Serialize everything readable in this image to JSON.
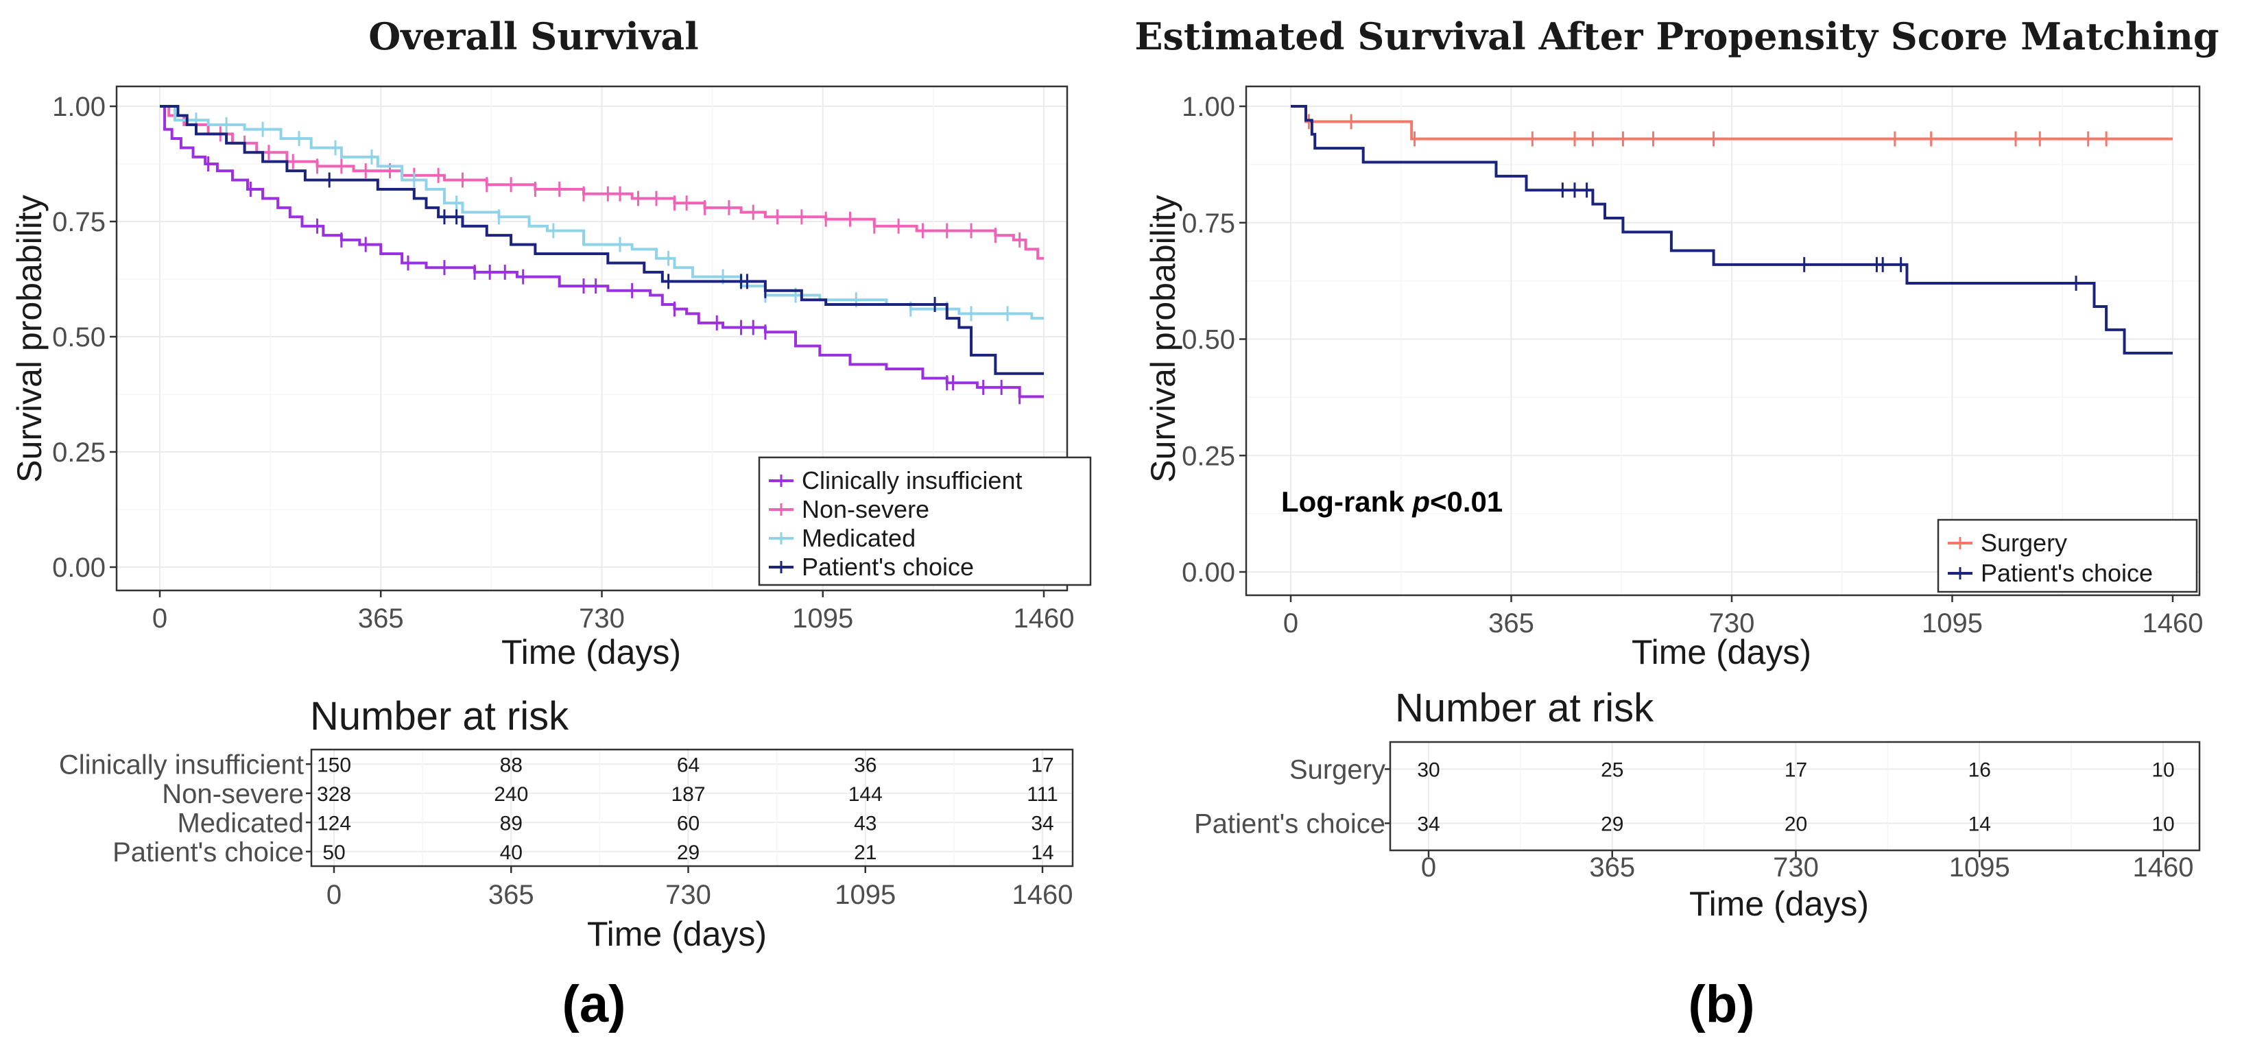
{
  "chart_data": [
    {
      "type": "line",
      "subtype": "kaplan-meier",
      "panel_label": "(a)",
      "title": "Overall Survival",
      "xlabel": "Time (days)",
      "ylabel": "Survival probability",
      "xlim": [
        0,
        1460
      ],
      "ylim": [
        0,
        1
      ],
      "xticks": [
        0,
        365,
        730,
        1095,
        1460
      ],
      "xtick_labels": [
        "0",
        "365",
        "730",
        "1095",
        "1460"
      ],
      "yticks": [
        0,
        0.25,
        0.5,
        0.75,
        1
      ],
      "ytick_labels": [
        "0.00",
        "0.25",
        "0.50",
        "0.75",
        "1.00"
      ],
      "grid": true,
      "legend_position": "bottom-right",
      "series": [
        {
          "name": "Clinically insufficient",
          "color": "#9b30e0",
          "steps": [
            [
              0,
              1.0
            ],
            [
              8,
              0.95
            ],
            [
              20,
              0.93
            ],
            [
              35,
              0.91
            ],
            [
              55,
              0.89
            ],
            [
              75,
              0.875
            ],
            [
              95,
              0.86
            ],
            [
              120,
              0.84
            ],
            [
              145,
              0.82
            ],
            [
              170,
              0.8
            ],
            [
              195,
              0.78
            ],
            [
              215,
              0.76
            ],
            [
              235,
              0.74
            ],
            [
              270,
              0.72
            ],
            [
              300,
              0.71
            ],
            [
              330,
              0.7
            ],
            [
              365,
              0.68
            ],
            [
              400,
              0.66
            ],
            [
              440,
              0.65
            ],
            [
              520,
              0.64
            ],
            [
              590,
              0.63
            ],
            [
              660,
              0.61
            ],
            [
              740,
              0.6
            ],
            [
              810,
              0.59
            ],
            [
              830,
              0.57
            ],
            [
              850,
              0.56
            ],
            [
              870,
              0.55
            ],
            [
              890,
              0.53
            ],
            [
              930,
              0.52
            ],
            [
              1000,
              0.51
            ],
            [
              1050,
              0.48
            ],
            [
              1090,
              0.46
            ],
            [
              1140,
              0.44
            ],
            [
              1200,
              0.43
            ],
            [
              1260,
              0.41
            ],
            [
              1300,
              0.4
            ],
            [
              1350,
              0.39
            ],
            [
              1420,
              0.37
            ],
            [
              1460,
              0.37
            ]
          ],
          "censor_times": [
            80,
            150,
            260,
            300,
            340,
            410,
            470,
            520,
            545,
            570,
            600,
            700,
            720,
            780,
            850,
            920,
            960,
            980,
            1000,
            1300,
            1310,
            1360,
            1390,
            1420
          ]
        },
        {
          "name": "Non-severe",
          "color": "#f062b5",
          "steps": [
            [
              0,
              1.0
            ],
            [
              15,
              0.98
            ],
            [
              40,
              0.96
            ],
            [
              80,
              0.94
            ],
            [
              120,
              0.92
            ],
            [
              160,
              0.9
            ],
            [
              210,
              0.88
            ],
            [
              260,
              0.87
            ],
            [
              320,
              0.86
            ],
            [
              400,
              0.85
            ],
            [
              470,
              0.84
            ],
            [
              540,
              0.83
            ],
            [
              620,
              0.82
            ],
            [
              700,
              0.81
            ],
            [
              780,
              0.8
            ],
            [
              850,
              0.79
            ],
            [
              900,
              0.78
            ],
            [
              960,
              0.77
            ],
            [
              1000,
              0.76
            ],
            [
              1100,
              0.755
            ],
            [
              1180,
              0.74
            ],
            [
              1250,
              0.73
            ],
            [
              1380,
              0.72
            ],
            [
              1410,
              0.71
            ],
            [
              1430,
              0.69
            ],
            [
              1450,
              0.67
            ],
            [
              1460,
              0.67
            ]
          ],
          "censor_times": [
            60,
            100,
            140,
            180,
            220,
            260,
            300,
            340,
            380,
            420,
            460,
            500,
            540,
            580,
            620,
            660,
            700,
            740,
            760,
            790,
            820,
            850,
            870,
            900,
            940,
            980,
            1020,
            1060,
            1100,
            1140,
            1180,
            1220,
            1260,
            1300,
            1340,
            1380,
            1420
          ]
        },
        {
          "name": "Medicated",
          "color": "#8fd3e8",
          "steps": [
            [
              0,
              1.0
            ],
            [
              25,
              0.97
            ],
            [
              80,
              0.96
            ],
            [
              140,
              0.95
            ],
            [
              200,
              0.93
            ],
            [
              250,
              0.91
            ],
            [
              300,
              0.89
            ],
            [
              360,
              0.87
            ],
            [
              400,
              0.84
            ],
            [
              440,
              0.82
            ],
            [
              470,
              0.79
            ],
            [
              500,
              0.77
            ],
            [
              560,
              0.76
            ],
            [
              610,
              0.74
            ],
            [
              640,
              0.73
            ],
            [
              700,
              0.7
            ],
            [
              780,
              0.69
            ],
            [
              820,
              0.67
            ],
            [
              850,
              0.65
            ],
            [
              880,
              0.63
            ],
            [
              960,
              0.61
            ],
            [
              1000,
              0.59
            ],
            [
              1090,
              0.58
            ],
            [
              1200,
              0.57
            ],
            [
              1240,
              0.56
            ],
            [
              1320,
              0.55
            ],
            [
              1440,
              0.54
            ],
            [
              1460,
              0.54
            ]
          ],
          "censor_times": [
            60,
            110,
            170,
            230,
            290,
            350,
            420,
            490,
            560,
            650,
            760,
            840,
            930,
            1000,
            1050,
            1150,
            1240,
            1300,
            1340,
            1400
          ]
        },
        {
          "name": "Patient's choice",
          "color": "#1a237e",
          "steps": [
            [
              0,
              1.0
            ],
            [
              30,
              0.98
            ],
            [
              45,
              0.96
            ],
            [
              60,
              0.94
            ],
            [
              110,
              0.92
            ],
            [
              140,
              0.9
            ],
            [
              170,
              0.88
            ],
            [
              210,
              0.86
            ],
            [
              240,
              0.84
            ],
            [
              360,
              0.82
            ],
            [
              420,
              0.8
            ],
            [
              440,
              0.78
            ],
            [
              460,
              0.76
            ],
            [
              500,
              0.74
            ],
            [
              540,
              0.72
            ],
            [
              580,
              0.7
            ],
            [
              620,
              0.68
            ],
            [
              740,
              0.66
            ],
            [
              800,
              0.64
            ],
            [
              830,
              0.62
            ],
            [
              1000,
              0.6
            ],
            [
              1060,
              0.58
            ],
            [
              1100,
              0.57
            ],
            [
              1300,
              0.54
            ],
            [
              1320,
              0.52
            ],
            [
              1340,
              0.46
            ],
            [
              1380,
              0.42
            ],
            [
              1460,
              0.42
            ]
          ],
          "censor_times": [
            280,
            470,
            490,
            840,
            960,
            970,
            1000,
            1280
          ]
        }
      ],
      "risk_table": {
        "title": "Number at risk",
        "xlabel": "Time (days)",
        "times": [
          0,
          365,
          730,
          1095,
          1460
        ],
        "time_labels": [
          "0",
          "365",
          "730",
          "1095",
          "1460"
        ],
        "rows": [
          {
            "label": "Clinically insufficient",
            "counts": [
              "150",
              "88",
              "64",
              "36",
              "17"
            ]
          },
          {
            "label": "Non-severe",
            "counts": [
              "328",
              "240",
              "187",
              "144",
              "111"
            ]
          },
          {
            "label": "Medicated",
            "counts": [
              "124",
              "89",
              "60",
              "43",
              "34"
            ]
          },
          {
            "label": "Patient's choice",
            "counts": [
              "50",
              "40",
              "29",
              "21",
              "14"
            ]
          }
        ]
      }
    },
    {
      "type": "line",
      "subtype": "kaplan-meier",
      "panel_label": "(b)",
      "title": "Estimated Survival After Propensity Score Matching",
      "xlabel": "Time (days)",
      "ylabel": "Survival probability",
      "annotation": {
        "prefix": "Log-rank ",
        "italic": "p",
        "suffix": "<0.01"
      },
      "xlim": [
        0,
        1460
      ],
      "ylim": [
        0,
        1
      ],
      "xticks": [
        0,
        365,
        730,
        1095,
        1460
      ],
      "xtick_labels": [
        "0",
        "365",
        "730",
        "1095",
        "1460"
      ],
      "yticks": [
        0,
        0.25,
        0.5,
        0.75,
        1
      ],
      "ytick_labels": [
        "0.00",
        "0.25",
        "0.50",
        "0.75",
        "1.00"
      ],
      "grid": true,
      "legend_position": "bottom-right",
      "series": [
        {
          "name": "Surgery",
          "color": "#f4776a",
          "steps": [
            [
              0,
              1.0
            ],
            [
              25,
              0.967
            ],
            [
              200,
              0.93
            ],
            [
              1460,
              0.93
            ]
          ],
          "censor_times": [
            30,
            100,
            205,
            400,
            470,
            500,
            550,
            600,
            700,
            1000,
            1060,
            1200,
            1240,
            1320,
            1350
          ]
        },
        {
          "name": "Patient's choice",
          "color": "#1a237e",
          "steps": [
            [
              0,
              1.0
            ],
            [
              25,
              0.97
            ],
            [
              35,
              0.94
            ],
            [
              40,
              0.91
            ],
            [
              120,
              0.88
            ],
            [
              340,
              0.85
            ],
            [
              390,
              0.82
            ],
            [
              500,
              0.79
            ],
            [
              520,
              0.76
            ],
            [
              550,
              0.73
            ],
            [
              630,
              0.69
            ],
            [
              700,
              0.66
            ],
            [
              1020,
              0.62
            ],
            [
              1330,
              0.57
            ],
            [
              1350,
              0.52
            ],
            [
              1380,
              0.47
            ],
            [
              1460,
              0.47
            ]
          ],
          "censor_times": [
            450,
            470,
            490,
            850,
            970,
            980,
            1010,
            1300
          ]
        }
      ],
      "risk_table": {
        "title": "Number at risk",
        "xlabel": "Time (days)",
        "times": [
          0,
          365,
          730,
          1095,
          1460
        ],
        "time_labels": [
          "0",
          "365",
          "730",
          "1095",
          "1460"
        ],
        "rows": [
          {
            "label": "Surgery",
            "counts": [
              "30",
              "25",
              "17",
              "16",
              "10"
            ]
          },
          {
            "label": "Patient's choice",
            "counts": [
              "34",
              "29",
              "20",
              "14",
              "10"
            ]
          }
        ]
      }
    }
  ]
}
